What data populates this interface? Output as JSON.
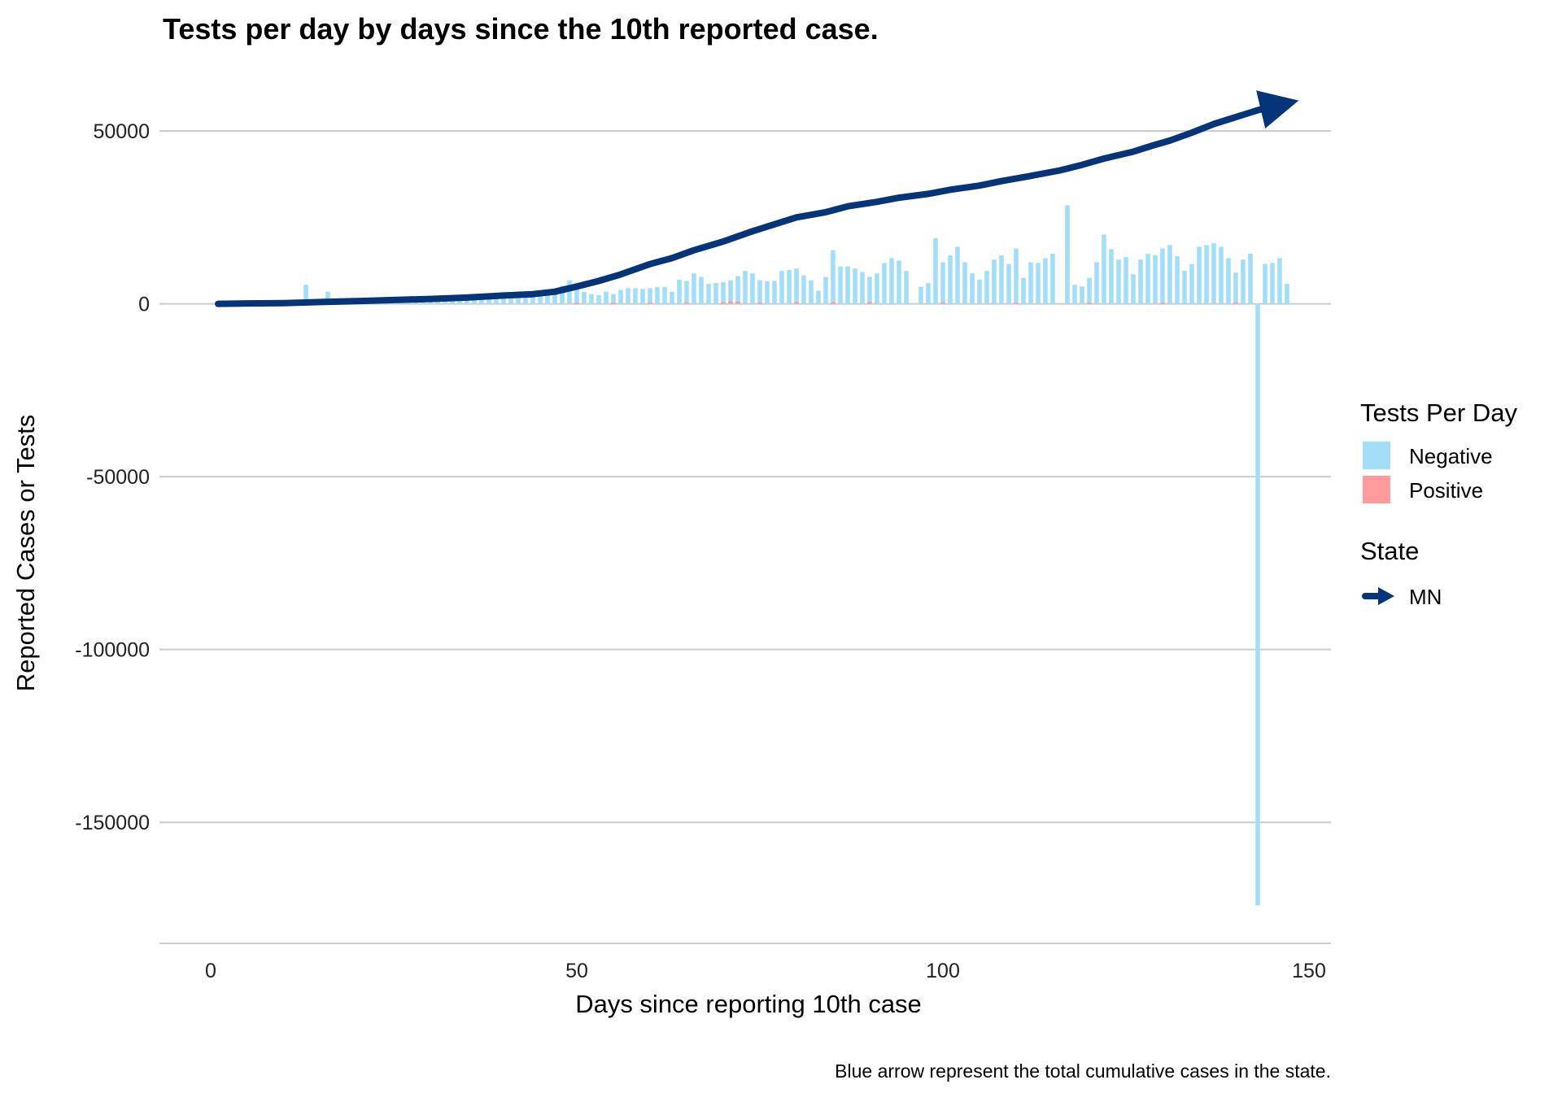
{
  "chart_data": {
    "type": "bar",
    "title": "Tests per day by days since the 10th reported case.",
    "xlabel": "Days since reporting 10th case",
    "ylabel": "Reported Cases or Tests",
    "caption": "Blue arrow represent the total cumulative cases in the state.",
    "xlim": [
      -7,
      153
    ],
    "ylim": [
      -185000,
      62000
    ],
    "x_ticks": [
      0,
      50,
      100,
      150
    ],
    "y_ticks": [
      50000,
      0,
      -50000,
      -100000,
      -150000
    ],
    "y_tick_labels": [
      "50000",
      "0",
      "-50000",
      "-100000",
      "-150000"
    ],
    "x_tick_labels": [
      "0",
      "50",
      "100",
      "150"
    ],
    "grid": "horizontal-major",
    "legend_position": "right",
    "colors": {
      "negative": "#a2def7",
      "positive": "#ff9b9b",
      "cumulative": "#063478",
      "grid": "#cccccc"
    },
    "legends": [
      {
        "title": "Tests Per Day",
        "entries": [
          {
            "label": "Negative",
            "color": "#a2def7",
            "shape": "square"
          },
          {
            "label": "Positive",
            "color": "#ff9b9b",
            "shape": "square"
          }
        ]
      },
      {
        "title": "State",
        "entries": [
          {
            "label": "MN",
            "color": "#063478",
            "shape": "arrow"
          }
        ]
      }
    ],
    "series": [
      {
        "name": "Negative",
        "kind": "bar",
        "points": [
          [
            1,
            300
          ],
          [
            2,
            200
          ],
          [
            3,
            300
          ],
          [
            4,
            400
          ],
          [
            5,
            300
          ],
          [
            6,
            400
          ],
          [
            7,
            300
          ],
          [
            8,
            400
          ],
          [
            9,
            500
          ],
          [
            10,
            500
          ],
          [
            11,
            600
          ],
          [
            12,
            700
          ],
          [
            13,
            5500
          ],
          [
            14,
            700
          ],
          [
            15,
            800
          ],
          [
            16,
            3500
          ],
          [
            17,
            900
          ],
          [
            18,
            800
          ],
          [
            19,
            900
          ],
          [
            20,
            1000
          ],
          [
            21,
            1000
          ],
          [
            22,
            1100
          ],
          [
            23,
            1100
          ],
          [
            24,
            1200
          ],
          [
            25,
            1200
          ],
          [
            26,
            1200
          ],
          [
            27,
            1300
          ],
          [
            28,
            1300
          ],
          [
            29,
            1400
          ],
          [
            30,
            1400
          ],
          [
            31,
            1500
          ],
          [
            32,
            1500
          ],
          [
            33,
            1500
          ],
          [
            34,
            1600
          ],
          [
            35,
            1600
          ],
          [
            36,
            1600
          ],
          [
            37,
            1700
          ],
          [
            38,
            1700
          ],
          [
            39,
            1800
          ],
          [
            40,
            1900
          ],
          [
            41,
            2000
          ],
          [
            42,
            2200
          ],
          [
            43,
            2300
          ],
          [
            44,
            2500
          ],
          [
            45,
            2600
          ],
          [
            46,
            2800
          ],
          [
            47,
            3000
          ],
          [
            48,
            5200
          ],
          [
            49,
            6800
          ],
          [
            50,
            4500
          ],
          [
            51,
            3500
          ],
          [
            52,
            2800
          ],
          [
            53,
            2500
          ],
          [
            54,
            3500
          ],
          [
            55,
            2800
          ],
          [
            56,
            4000
          ],
          [
            57,
            4500
          ],
          [
            58,
            4500
          ],
          [
            59,
            4300
          ],
          [
            60,
            4500
          ],
          [
            61,
            4800
          ],
          [
            62,
            4900
          ],
          [
            63,
            3500
          ],
          [
            64,
            7000
          ],
          [
            65,
            6600
          ],
          [
            66,
            8800
          ],
          [
            67,
            7800
          ],
          [
            68,
            5800
          ],
          [
            69,
            6000
          ],
          [
            70,
            6200
          ],
          [
            71,
            6800
          ],
          [
            72,
            8000
          ],
          [
            73,
            9500
          ],
          [
            74,
            8800
          ],
          [
            75,
            6800
          ],
          [
            76,
            6500
          ],
          [
            77,
            6600
          ],
          [
            78,
            9500
          ],
          [
            79,
            9800
          ],
          [
            80,
            10200
          ],
          [
            81,
            8200
          ],
          [
            82,
            6800
          ],
          [
            83,
            3800
          ],
          [
            84,
            7800
          ],
          [
            85,
            15500
          ],
          [
            86,
            10800
          ],
          [
            87,
            10800
          ],
          [
            88,
            10200
          ],
          [
            89,
            9200
          ],
          [
            90,
            7800
          ],
          [
            91,
            8800
          ],
          [
            92,
            11800
          ],
          [
            93,
            13200
          ],
          [
            94,
            12500
          ],
          [
            95,
            9500
          ],
          [
            97,
            4900
          ],
          [
            98,
            6000
          ],
          [
            99,
            19000
          ],
          [
            100,
            12000
          ],
          [
            101,
            14000
          ],
          [
            102,
            16500
          ],
          [
            103,
            12000
          ],
          [
            104,
            8800
          ],
          [
            105,
            7000
          ],
          [
            106,
            9500
          ],
          [
            107,
            12800
          ],
          [
            108,
            14000
          ],
          [
            109,
            11500
          ],
          [
            110,
            16000
          ],
          [
            111,
            7500
          ],
          [
            112,
            12000
          ],
          [
            113,
            11800
          ],
          [
            114,
            13200
          ],
          [
            115,
            14500
          ],
          [
            117,
            28500
          ],
          [
            118,
            5500
          ],
          [
            119,
            5000
          ],
          [
            120,
            7500
          ],
          [
            121,
            12000
          ],
          [
            122,
            20000
          ],
          [
            123,
            15800
          ],
          [
            124,
            12800
          ],
          [
            125,
            13500
          ],
          [
            126,
            8500
          ],
          [
            127,
            12800
          ],
          [
            128,
            14500
          ],
          [
            129,
            14000
          ],
          [
            130,
            16000
          ],
          [
            131,
            17000
          ],
          [
            132,
            13800
          ],
          [
            133,
            9500
          ],
          [
            134,
            11500
          ],
          [
            135,
            16500
          ],
          [
            136,
            17000
          ],
          [
            137,
            17500
          ],
          [
            138,
            16500
          ],
          [
            139,
            13200
          ],
          [
            140,
            9000
          ],
          [
            141,
            12800
          ],
          [
            142,
            14500
          ],
          [
            143,
            -174000
          ],
          [
            144,
            11500
          ],
          [
            145,
            11800
          ],
          [
            146,
            13200
          ],
          [
            147,
            5800
          ]
        ]
      },
      {
        "name": "Positive",
        "kind": "bar",
        "points": [
          [
            50,
            300
          ],
          [
            55,
            250
          ],
          [
            60,
            350
          ],
          [
            65,
            400
          ],
          [
            70,
            500
          ],
          [
            71,
            700
          ],
          [
            72,
            600
          ],
          [
            75,
            450
          ],
          [
            80,
            450
          ],
          [
            85,
            500
          ],
          [
            90,
            450
          ],
          [
            100,
            400
          ],
          [
            110,
            350
          ],
          [
            120,
            350
          ],
          [
            130,
            300
          ],
          [
            140,
            300
          ]
        ]
      },
      {
        "name": "MN",
        "kind": "line",
        "points": [
          [
            1,
            0
          ],
          [
            5,
            100
          ],
          [
            10,
            200
          ],
          [
            15,
            500
          ],
          [
            20,
            800
          ],
          [
            25,
            1100
          ],
          [
            30,
            1400
          ],
          [
            35,
            1800
          ],
          [
            40,
            2400
          ],
          [
            44,
            2800
          ],
          [
            47,
            3500
          ],
          [
            50,
            5000
          ],
          [
            53,
            6600
          ],
          [
            56,
            8500
          ],
          [
            60,
            11500
          ],
          [
            63,
            13200
          ],
          [
            66,
            15500
          ],
          [
            70,
            18000
          ],
          [
            74,
            21000
          ],
          [
            77,
            23000
          ],
          [
            80,
            25000
          ],
          [
            84,
            26500
          ],
          [
            87,
            28200
          ],
          [
            91,
            29500
          ],
          [
            94,
            30700
          ],
          [
            98,
            31800
          ],
          [
            101,
            33000
          ],
          [
            105,
            34200
          ],
          [
            108,
            35500
          ],
          [
            112,
            37000
          ],
          [
            116,
            38600
          ],
          [
            119,
            40200
          ],
          [
            122,
            42000
          ],
          [
            126,
            44000
          ],
          [
            129,
            46000
          ],
          [
            131,
            47200
          ],
          [
            134,
            49500
          ],
          [
            137,
            52000
          ],
          [
            140,
            54000
          ],
          [
            143,
            56000
          ],
          [
            146,
            57500
          ]
        ]
      }
    ]
  }
}
